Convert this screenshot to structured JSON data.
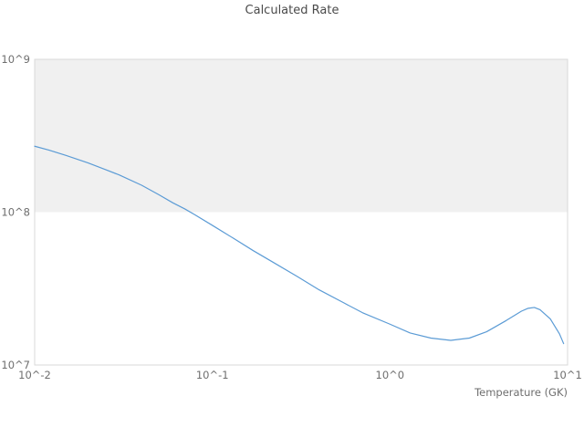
{
  "colors": {
    "line": "#5b9bd5",
    "band": "#f0f0f0",
    "plot_border": "#d9d9d9",
    "tick_text": "#6e6e6e",
    "title_text": "#4a4a4a",
    "background": "#ffffff"
  },
  "chart_data": {
    "type": "line",
    "title": "Calculated Rate",
    "xlabel": "Temperature (GK)",
    "ylabel": "",
    "xscale": "log",
    "yscale": "log",
    "xlim": [
      0.01,
      10
    ],
    "ylim": [
      10000000,
      1000000000
    ],
    "grid": false,
    "legend_position": "none",
    "x_tick_values": [
      0.01,
      0.1,
      1,
      10
    ],
    "x_tick_labels": [
      "10^-2",
      "10^-1",
      "10^0",
      "10^1"
    ],
    "y_tick_values": [
      10000000,
      100000000,
      1000000000
    ],
    "y_tick_labels": [
      "10^7",
      "10^8",
      "10^9"
    ],
    "bands": [
      {
        "y_from": 100000000,
        "y_to": 1000000000
      }
    ],
    "series": [
      {
        "name": "calculated-rate",
        "x": [
          0.01,
          0.012,
          0.015,
          0.02,
          0.025,
          0.03,
          0.04,
          0.05,
          0.06,
          0.07,
          0.08,
          0.1,
          0.13,
          0.17,
          0.22,
          0.3,
          0.4,
          0.55,
          0.7,
          1.0,
          1.3,
          1.7,
          2.2,
          2.8,
          3.5,
          4.5,
          5.5,
          6.0,
          6.5,
          7.0,
          8.0,
          9.0,
          9.5
        ],
        "y": [
          270000000,
          255000000,
          235000000,
          210000000,
          190000000,
          175000000,
          150000000,
          130000000,
          115000000,
          105000000,
          96000000,
          82000000,
          68000000,
          56000000,
          47000000,
          38000000,
          31000000,
          25500000,
          22000000,
          18500000,
          16200000,
          15000000,
          14500000,
          15000000,
          16500000,
          19500000,
          22500000,
          23500000,
          23800000,
          23000000,
          20000000,
          16000000,
          13800000
        ]
      }
    ]
  }
}
